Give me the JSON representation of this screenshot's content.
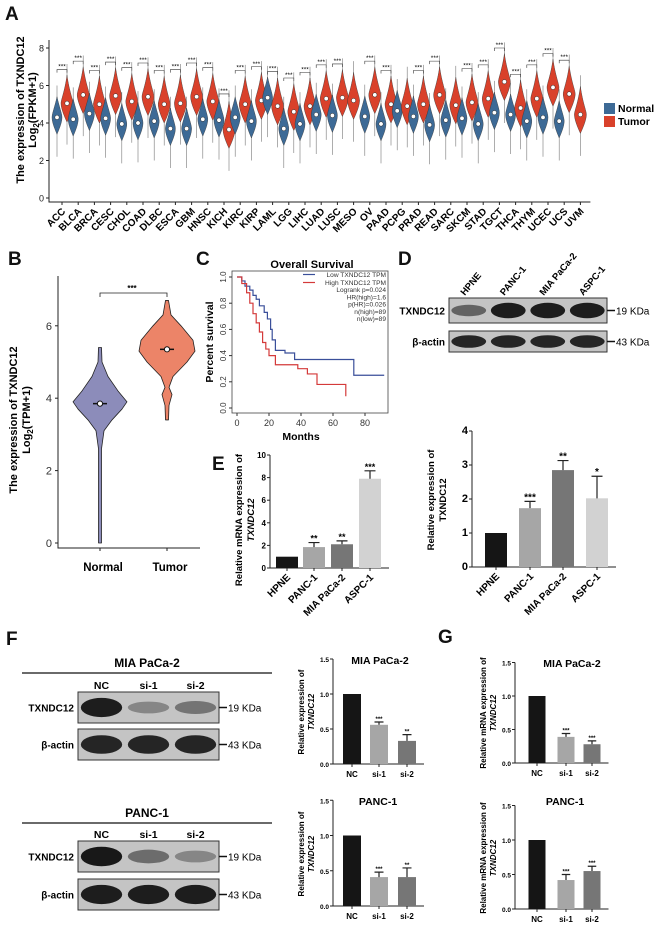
{
  "panel_labels": {
    "A": "A",
    "B": "B",
    "C": "C",
    "D": "D",
    "E": "E",
    "F": "F",
    "G": "G"
  },
  "colors": {
    "normal": "#3d6a96",
    "tumor": "#d9412b",
    "b_normal": "#8c8cba",
    "b_tumor": "#ec8468"
  },
  "chart_data": [
    {
      "type": "violin",
      "ylabel_line1": "The expression of TXNDC12",
      "ylabel_log": "Log",
      "ylabel_sub": "2",
      "ylabel_rest": "(FPKM+1)",
      "ylim": [
        0,
        9
      ],
      "yticks": [
        0,
        2,
        4,
        6,
        8
      ],
      "legend": [
        "Normal",
        "Tumor"
      ],
      "legend_position": "right",
      "categories": [
        "ACC",
        "BLCA",
        "BRCA",
        "CESC",
        "CHOL",
        "COAD",
        "DLBC",
        "ESCA",
        "GBM",
        "HNSC",
        "KICH",
        "KIRC",
        "KIRP",
        "LAML",
        "LGG",
        "LIHC",
        "LUAD",
        "LUSC",
        "MESO",
        "OV",
        "PAAD",
        "PCPG",
        "PRAD",
        "READ",
        "SARC",
        "SKCM",
        "STAD",
        "TGCT",
        "THCA",
        "THYM",
        "UCEC",
        "UCS",
        "UVM"
      ],
      "series": [
        {
          "name": "Normal",
          "median": [
            4.3,
            4.2,
            4.5,
            4.25,
            3.95,
            4.0,
            4.1,
            3.7,
            3.7,
            4.2,
            4.15,
            4.3,
            4.1,
            5.35,
            3.7,
            3.95,
            4.45,
            4.4,
            null,
            4.35,
            3.95,
            4.65,
            4.35,
            3.9,
            4.15,
            4.25,
            3.95,
            4.55,
            4.45,
            4.1,
            4.3,
            4.1,
            null
          ]
        },
        {
          "name": "Tumor",
          "median": [
            5.05,
            5.5,
            5.0,
            5.45,
            5.15,
            5.4,
            5.0,
            5.05,
            5.4,
            5.15,
            3.65,
            5.0,
            5.2,
            4.9,
            4.6,
            4.9,
            5.3,
            5.35,
            5.2,
            5.5,
            5.0,
            4.9,
            5.0,
            5.5,
            4.95,
            5.1,
            5.3,
            6.2,
            4.8,
            5.3,
            5.9,
            5.55,
            4.45
          ]
        }
      ],
      "significance": [
        "***",
        "***",
        "***",
        "***",
        "***",
        "***",
        "***",
        "***",
        "***",
        "***",
        "***",
        "***",
        "***",
        "***",
        "***",
        "***",
        "***",
        "***",
        "",
        "***",
        "***",
        "",
        "***",
        "***",
        "",
        "***",
        "***",
        "***",
        "***",
        "***",
        "***",
        "***",
        ""
      ]
    },
    {
      "type": "violin",
      "ylabel_line1": "The expression of TXNDC12",
      "ylabel_log": "Log",
      "ylabel_sub": "2",
      "ylabel_rest": "(TPM+1)",
      "ylim": [
        0,
        7
      ],
      "yticks": [
        0,
        2,
        4,
        6
      ],
      "categories": [
        "Normal",
        "Tumor"
      ],
      "median": [
        3.85,
        5.35
      ],
      "range": [
        [
          0,
          5.4
        ],
        [
          3.4,
          6.7
        ]
      ],
      "significance": "***"
    },
    {
      "type": "line",
      "title": "Overall Survival",
      "xlabel": "Months",
      "ylabel": "Percent survival",
      "xlim": [
        0,
        95
      ],
      "ylim": [
        0,
        1
      ],
      "xticks": [
        0,
        20,
        40,
        60,
        80
      ],
      "yticks": [
        "0.0",
        "0.2",
        "0.4",
        "0.6",
        "0.8",
        "1.0"
      ],
      "series": [
        {
          "name": "Low TXNDC12 TPM",
          "color": "#3a4f9a",
          "points": [
            [
              0,
              1
            ],
            [
              3,
              0.97
            ],
            [
              5,
              0.93
            ],
            [
              8,
              0.9
            ],
            [
              10,
              0.86
            ],
            [
              12,
              0.83
            ],
            [
              14,
              0.78
            ],
            [
              17,
              0.73
            ],
            [
              19,
              0.68
            ],
            [
              21,
              0.6
            ],
            [
              22,
              0.52
            ],
            [
              24,
              0.44
            ],
            [
              30,
              0.42
            ],
            [
              36,
              0.37
            ],
            [
              73,
              0.25
            ],
            [
              92,
              0.25
            ]
          ]
        },
        {
          "name": "High TXNDC12 TPM",
          "color": "#d43a3a",
          "points": [
            [
              0,
              1
            ],
            [
              3,
              0.95
            ],
            [
              6,
              0.88
            ],
            [
              8,
              0.8
            ],
            [
              10,
              0.72
            ],
            [
              12,
              0.65
            ],
            [
              14,
              0.58
            ],
            [
              16,
              0.5
            ],
            [
              18,
              0.45
            ],
            [
              20,
              0.4
            ],
            [
              24,
              0.33
            ],
            [
              32,
              0.33
            ],
            [
              38,
              0.3
            ],
            [
              44,
              0.26
            ],
            [
              50,
              0.18
            ],
            [
              68,
              0.18
            ],
            [
              68,
              0.09
            ]
          ]
        }
      ],
      "stats": [
        "Logrank p=0.024",
        "HR(high)=1.6",
        "p(HR)=0.026",
        "n(high)=89",
        "n(low)=89"
      ],
      "legend_position": "top-right"
    },
    {
      "type": "bar",
      "ylabel_line1": "Relative expression of",
      "ylabel_line2": "TXNDC12",
      "categories": [
        "HPNE",
        "PANC-1",
        "MIA PaCa-2",
        "ASPC-1"
      ],
      "values": [
        1,
        1.73,
        2.85,
        2.02
      ],
      "errors": [
        0,
        0.2,
        0.28,
        0.65
      ],
      "significance": [
        "",
        "***",
        "**",
        "*"
      ],
      "colors": [
        "#151515",
        "#a6a6a6",
        "#767676",
        "#d2d2d2"
      ],
      "ylim": [
        0,
        4
      ],
      "yticks": [
        "0",
        "1",
        "2",
        "3",
        "4"
      ]
    },
    {
      "type": "bar",
      "ylabel_line1": "Relative mRNA expression of",
      "ylabel_line2": "TXNDC12",
      "categories": [
        "HPNE",
        "PANC-1",
        "MIA PaCa-2",
        "ASPC-1"
      ],
      "values": [
        1,
        1.85,
        2.1,
        7.9
      ],
      "errors": [
        0,
        0.4,
        0.3,
        0.7
      ],
      "significance": [
        "",
        "**",
        "**",
        "***"
      ],
      "colors": [
        "#151515",
        "#a6a6a6",
        "#767676",
        "#d2d2d2"
      ],
      "ylim": [
        0,
        10
      ],
      "yticks": [
        "0",
        "2",
        "4",
        "6",
        "8",
        "10"
      ]
    },
    {
      "type": "bar",
      "title": "MIA PaCa-2",
      "ylabel_line1": "Relative expression of",
      "ylabel_line2": "TXNDC12",
      "categories": [
        "NC",
        "si-1",
        "si-2"
      ],
      "values": [
        1,
        0.56,
        0.33
      ],
      "errors": [
        0,
        0.04,
        0.09
      ],
      "significance": [
        "",
        "***",
        "**"
      ],
      "colors": [
        "#151515",
        "#a6a6a6",
        "#767676"
      ],
      "ylim": [
        0,
        1.5
      ],
      "yticks": [
        "0.0",
        "0.5",
        "1.0",
        "1.5"
      ]
    },
    {
      "type": "bar",
      "title": "PANC-1",
      "ylabel_line1": "Relative expression of",
      "ylabel_line2": "TXNDC12",
      "categories": [
        "NC",
        "si-1",
        "si-2"
      ],
      "values": [
        1,
        0.41,
        0.41
      ],
      "errors": [
        0,
        0.07,
        0.13
      ],
      "significance": [
        "",
        "***",
        "**"
      ],
      "colors": [
        "#151515",
        "#a6a6a6",
        "#767676"
      ],
      "ylim": [
        0,
        1.5
      ],
      "yticks": [
        "0.0",
        "0.5",
        "1.0",
        "1.5"
      ]
    },
    {
      "type": "bar",
      "title": "MIA PaCa-2",
      "ylabel_line1": "Relative mRNA expression of",
      "ylabel_line2": "TXNDC12",
      "categories": [
        "NC",
        "si-1",
        "si-2"
      ],
      "values": [
        1,
        0.39,
        0.28
      ],
      "errors": [
        0,
        0.05,
        0.05
      ],
      "significance": [
        "",
        "***",
        "***"
      ],
      "colors": [
        "#151515",
        "#a6a6a6",
        "#767676"
      ],
      "ylim": [
        0,
        1.5
      ],
      "yticks": [
        "0.0",
        "0.5",
        "1.0",
        "1.5"
      ]
    },
    {
      "type": "bar",
      "title": "PANC-1",
      "ylabel_line1": "Relative mRNA expression of",
      "ylabel_line2": "TXNDC12",
      "categories": [
        "NC",
        "si-1",
        "si-2"
      ],
      "values": [
        1,
        0.42,
        0.55
      ],
      "errors": [
        0,
        0.08,
        0.07
      ],
      "significance": [
        "",
        "***",
        "***"
      ],
      "colors": [
        "#151515",
        "#a6a6a6",
        "#767676"
      ],
      "ylim": [
        0,
        1.5
      ],
      "yticks": [
        "0.0",
        "0.5",
        "1.0",
        "1.5"
      ]
    }
  ],
  "blots": {
    "d": {
      "lanes": [
        "HPNE",
        "PANC-1",
        "MIA PaCa-2",
        "ASPC-1"
      ],
      "rows": [
        {
          "label": "TXNDC12",
          "marker": "19 KDa",
          "intensity": [
            0.55,
            0.95,
            0.95,
            0.95
          ]
        },
        {
          "label": "β-actin",
          "marker": "43 KDa",
          "intensity": [
            0.9,
            0.9,
            0.9,
            0.9
          ]
        }
      ]
    },
    "f_mia": {
      "title": "MIA PaCa-2",
      "lanes": [
        "NC",
        "si-1",
        "si-2"
      ],
      "rows": [
        {
          "label": "TXNDC12",
          "marker": "19 KDa",
          "intensity": [
            0.95,
            0.35,
            0.45
          ]
        },
        {
          "label": "β-actin",
          "marker": "43 KDa",
          "intensity": [
            0.9,
            0.9,
            0.9
          ]
        }
      ]
    },
    "f_panc": {
      "title": "PANC-1",
      "lanes": [
        "NC",
        "si-1",
        "si-2"
      ],
      "rows": [
        {
          "label": "TXNDC12",
          "marker": "19 KDa",
          "intensity": [
            0.98,
            0.5,
            0.35
          ]
        },
        {
          "label": "β-actin",
          "marker": "43 KDa",
          "intensity": [
            0.95,
            0.95,
            0.95
          ]
        }
      ]
    }
  }
}
